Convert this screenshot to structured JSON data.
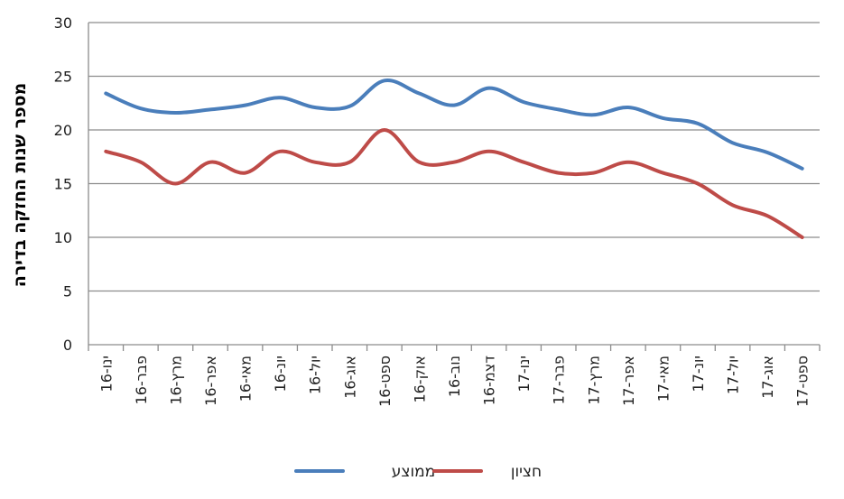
{
  "chart_data": {
    "type": "line",
    "ylabel": "מספר שנות החזקה בדירה",
    "xlabel": "",
    "ylim": [
      0,
      30
    ],
    "yticks": [
      0,
      5,
      10,
      15,
      20,
      25,
      30
    ],
    "grid": true,
    "legend_position": "bottom",
    "categories": [
      "ינו-16",
      "פבר-16",
      "מרץ-16",
      "אפר-16",
      "מאי-16",
      "יונ-16",
      "יול-16",
      "אוג-16",
      "ספט-16",
      "אוק-16",
      "נוב-16",
      "דצמ-16",
      "ינו-17",
      "פבר-17",
      "מרץ-17",
      "אפר-17",
      "מאי-17",
      "יונ-17",
      "יול-17",
      "אוג-17",
      "ספט-17"
    ],
    "series": [
      {
        "name": "ממוצע",
        "color": "#4a7ebb",
        "values": [
          23.4,
          22.0,
          21.6,
          21.9,
          22.3,
          23.0,
          22.1,
          22.2,
          24.6,
          23.4,
          22.3,
          23.9,
          22.6,
          21.9,
          21.4,
          22.1,
          21.1,
          20.6,
          18.8,
          17.9,
          16.4
        ]
      },
      {
        "name": "חציון",
        "color": "#be4b48",
        "values": [
          18.0,
          17.0,
          15.0,
          17.0,
          16.0,
          18.0,
          17.0,
          17.0,
          20.0,
          17.0,
          17.0,
          18.0,
          17.0,
          16.0,
          16.0,
          17.0,
          16.0,
          15.0,
          13.0,
          12.0,
          10.0
        ]
      }
    ]
  }
}
